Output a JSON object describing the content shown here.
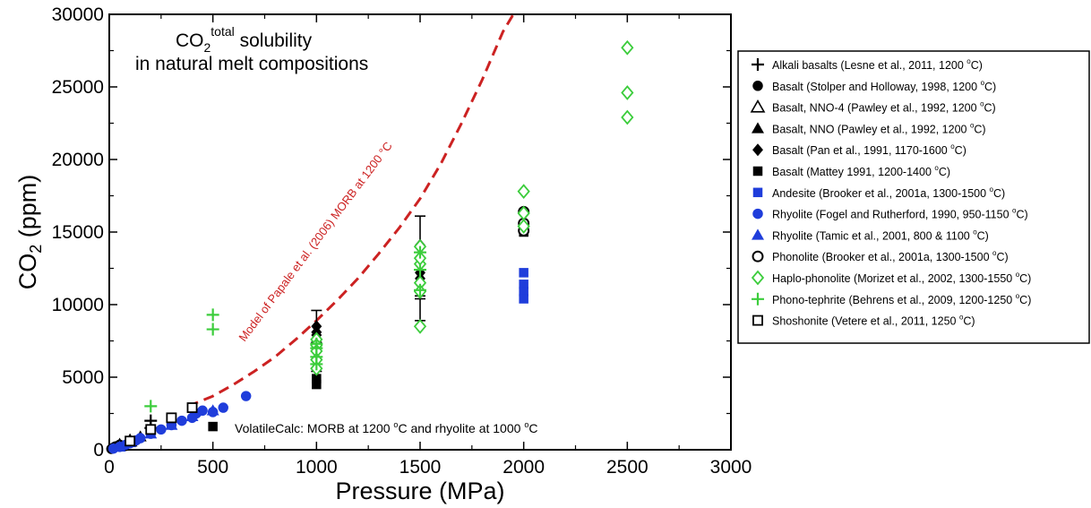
{
  "chart_data": {
    "type": "scatter",
    "title": {
      "line1_main": "CO",
      "line1_sub": "2",
      "line1_sup": "total",
      "line1_rest": " solubility",
      "line2": "in natural melt compositions"
    },
    "xlabel": "Pressure (MPa)",
    "ylabel": {
      "main": "CO",
      "sub": "2",
      "rest": " (ppm)"
    },
    "xlim": [
      0,
      3000
    ],
    "ylim": [
      0,
      30000
    ],
    "xticks": [
      "0",
      "500",
      "1000",
      "1500",
      "2000",
      "2500",
      "3000"
    ],
    "yticks": [
      "0",
      "5000",
      "10000",
      "15000",
      "20000",
      "25000",
      "30000"
    ],
    "grid": false,
    "legend_position": "right",
    "model_curve": {
      "label": "Model of Papale et al. (2006) MORB at 1200 °C",
      "color": "#cc2222",
      "style": "dashed",
      "x": [
        380,
        500,
        600,
        700,
        800,
        900,
        1000,
        1100,
        1200,
        1300,
        1400,
        1500,
        1600,
        1700,
        1800,
        1900,
        1950
      ],
      "y": [
        3000,
        3700,
        4500,
        5400,
        6400,
        7600,
        8900,
        10300,
        11800,
        13500,
        15300,
        17300,
        19700,
        22500,
        25500,
        28800,
        30000
      ]
    },
    "volatilecalc_label": {
      "pre": "VolatileCalc: MORB at 1200 ",
      "sup1": "o",
      "mid": "C and rhyolite at 1000 ",
      "sup2": "o",
      "post": "C"
    },
    "series": [
      {
        "name": "Alkali basalts (Lesne et al., 2011, 1200 °C)",
        "legend_pre": "Alkali basalts (Lesne et al., 2011, 1200 ",
        "legend_post": "C)",
        "marker": "plus",
        "color": "#000000",
        "x": [
          200,
          200
        ],
        "y": [
          2000,
          1500
        ]
      },
      {
        "name": "Basalt (Stolper and Holloway, 1998, 1200 °C)",
        "legend_pre": "Basalt (Stolper and Holloway, 1998, 1200 ",
        "legend_post": "C)",
        "marker": "circle-filled",
        "color": "#000000",
        "x": [
          10,
          20,
          30,
          50
        ],
        "y": [
          60,
          150,
          230,
          350
        ]
      },
      {
        "name": "Basalt, NNO-4 (Pawley et al., 1992, 1200 °C)",
        "legend_pre": "Basalt, NNO-4 (Pawley et al., 1992, 1200 ",
        "legend_post": "C)",
        "marker": "triangle-open",
        "color": "#000000",
        "x": [
          50,
          100
        ],
        "y": [
          300,
          600
        ]
      },
      {
        "name": "Basalt, NNO (Pawley et al., 1992, 1200 °C)",
        "legend_pre": "Basalt, NNO (Pawley et al., 1992, 1200 ",
        "legend_post": "C)",
        "marker": "triangle-filled",
        "color": "#000000",
        "x": [
          50,
          100,
          150
        ],
        "y": [
          300,
          650,
          900
        ]
      },
      {
        "name": "Basalt (Pan et al., 1991, 1170-1600 °C)",
        "legend_pre": "Basalt (Pan et al., 1991, 1170-1600 ",
        "legend_post": "C)",
        "marker": "diamond-filled",
        "color": "#000000",
        "x": [
          1000,
          1000,
          1000,
          1500,
          1500,
          1500,
          2000
        ],
        "y": [
          8500,
          8100,
          7900,
          14100,
          12200,
          11800,
          15200
        ]
      },
      {
        "name": "Basalt (Mattey 1991, 1200-1400 °C)",
        "legend_pre": "Basalt (Mattey 1991, 1200-1400 ",
        "legend_post": "C)",
        "marker": "square-filled",
        "color": "#000000",
        "x": [
          500,
          1000,
          1000,
          2000,
          2000
        ],
        "y": [
          1600,
          4500,
          4900,
          15000,
          15300
        ]
      },
      {
        "name": "Andesite (Brooker et al., 2001a, 1300-1500 °C)",
        "legend_pre": "Andesite (Brooker et al., 2001a, 1300-1500 ",
        "legend_post": "C)",
        "marker": "square-filled",
        "color": "#1f3ddb",
        "x": [
          2000,
          2000,
          2000,
          2000
        ],
        "y": [
          12200,
          11400,
          10900,
          10400
        ]
      },
      {
        "name": "Rhyolite (Fogel and Rutherford, 1990, 950-1150 °C)",
        "legend_pre": "Rhyolite (Fogel and Rutherford, 1990, 950-1150 ",
        "legend_post": "C)",
        "marker": "circle-filled",
        "color": "#1f3ddb",
        "x": [
          20,
          50,
          80,
          100,
          130,
          150,
          200,
          250,
          300,
          350,
          400,
          420,
          450,
          500,
          550,
          660
        ],
        "y": [
          80,
          200,
          350,
          450,
          650,
          800,
          1100,
          1400,
          1700,
          2000,
          2200,
          2500,
          2700,
          2600,
          2900,
          3700
        ]
      },
      {
        "name": "Rhyolite (Tamic et al., 2001, 800 & 1100 °C)",
        "legend_pre": "Rhyolite (Tamic et al., 2001, 800 & 1100 ",
        "legend_post": "C)",
        "marker": "triangle-filled",
        "color": "#1f3ddb",
        "x": [
          50,
          100,
          200,
          300,
          400,
          500
        ],
        "y": [
          200,
          500,
          1100,
          1700,
          2300,
          2700
        ]
      },
      {
        "name": "Phonolite (Brooker et al., 2001a, 1300-1500 °C)",
        "legend_pre": "Phonolite (Brooker et al., 2001a, 1300-1500 ",
        "legend_post": "C)",
        "marker": "circle-open",
        "color": "#000000",
        "x": [
          2000,
          2000,
          2000
        ],
        "y": [
          16400,
          15600,
          15100
        ]
      },
      {
        "name": "Haplo-phonolite (Morizet et al., 2002, 1300-1550 °C)",
        "legend_pre": "Haplo-phonolite (Morizet et al., 2002, 1300-1550 ",
        "legend_post": "C)",
        "marker": "diamond-open",
        "color": "#3ccd3c",
        "x": [
          1000,
          1000,
          1000,
          1000,
          1000,
          1500,
          1500,
          1500,
          1500,
          1500,
          1500,
          2000,
          2000,
          2000,
          2500,
          2500,
          2500
        ],
        "y": [
          7600,
          7200,
          6800,
          6200,
          5600,
          14000,
          12800,
          11500,
          10900,
          8500,
          13200,
          17800,
          16300,
          15400,
          27700,
          24600,
          22900
        ]
      },
      {
        "name": "Phono-tephrite (Behrens et al., 2009, 1200-1250 °C)",
        "legend_pre": "Phono-tephrite (Behrens et al., 2009, 1200-1250 ",
        "legend_post": "C)",
        "marker": "plus",
        "color": "#3ccd3c",
        "x": [
          200,
          500,
          500,
          1000,
          1000,
          1000,
          1000,
          1500,
          1500,
          1500
        ],
        "y": [
          3000,
          9300,
          8300,
          7300,
          7000,
          6400,
          5900,
          13600,
          12400,
          11000
        ]
      },
      {
        "name": "Shoshonite (Vetere et al., 2011, 1250 °C)",
        "legend_pre": "Shoshonite (Vetere et al., 2011, 1250 ",
        "legend_post": "C)",
        "marker": "square-open",
        "color": "#000000",
        "x": [
          100,
          200,
          300,
          400
        ],
        "y": [
          600,
          1400,
          2200,
          2900
        ]
      }
    ],
    "error_bars": [
      {
        "x": 1000,
        "y": 9000,
        "low": 7600,
        "high": 9600,
        "color": "#000000"
      },
      {
        "x": 1000,
        "y": 6400,
        "low": 5400,
        "high": 7400,
        "color": "#000000"
      },
      {
        "x": 1500,
        "y": 15200,
        "low": 14000,
        "high": 16100,
        "color": "#000000"
      },
      {
        "x": 1500,
        "y": 12200,
        "low": 10400,
        "high": 13600,
        "color": "#000000"
      },
      {
        "x": 1500,
        "y": 9800,
        "low": 8900,
        "high": 10600,
        "color": "#000000"
      }
    ]
  }
}
